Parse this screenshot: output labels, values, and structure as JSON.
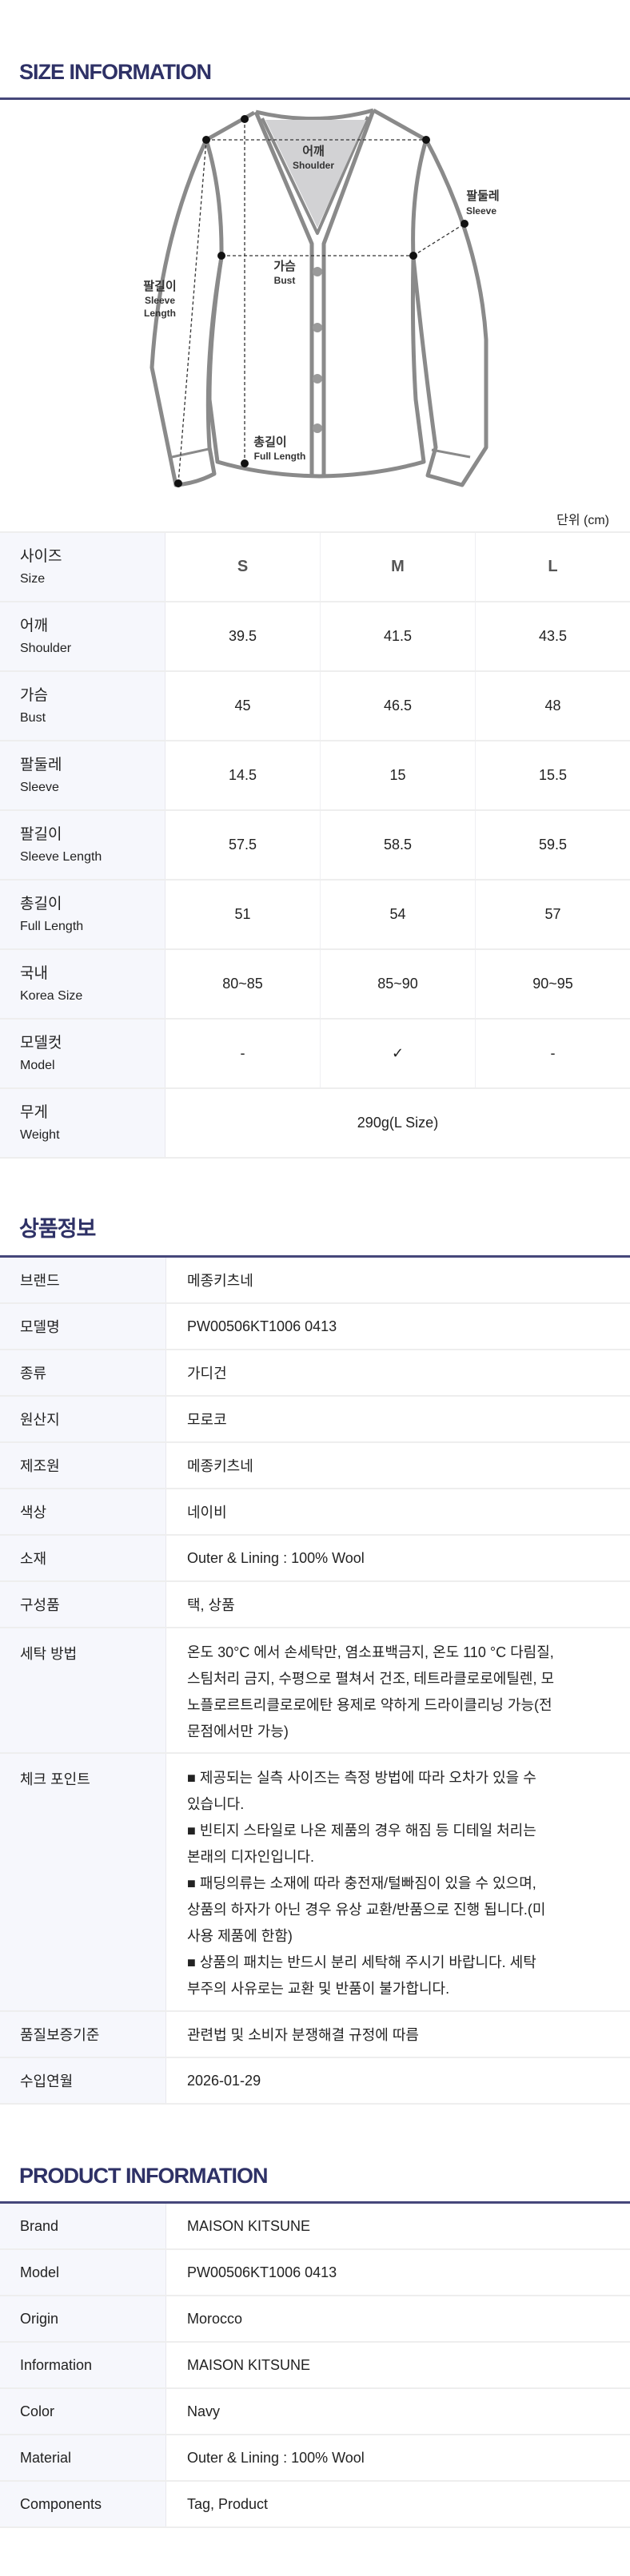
{
  "size_section": {
    "title": "SIZE INFORMATION",
    "unit": "단위 (cm)",
    "diagram_labels": {
      "shoulder_ko": "어깨",
      "shoulder_en": "Shoulder",
      "sleeve_ko": "팔둘레",
      "sleeve_en": "Sleeve",
      "bust_ko": "가슴",
      "bust_en": "Bust",
      "sleeve_length_ko": "팔길이",
      "sleeve_length_en1": "Sleeve",
      "sleeve_length_en2": "Length",
      "full_length_ko": "총길이",
      "full_length_en": "Full Length"
    },
    "rows": [
      {
        "ko": "사이즈",
        "en": "Size",
        "values": [
          "S",
          "M",
          "L"
        ]
      },
      {
        "ko": "어깨",
        "en": "Shoulder",
        "values": [
          "39.5",
          "41.5",
          "43.5"
        ]
      },
      {
        "ko": "가슴",
        "en": "Bust",
        "values": [
          "45",
          "46.5",
          "48"
        ]
      },
      {
        "ko": "팔둘레",
        "en": "Sleeve",
        "values": [
          "14.5",
          "15",
          "15.5"
        ]
      },
      {
        "ko": "팔길이",
        "en": "Sleeve Length",
        "values": [
          "57.5",
          "58.5",
          "59.5"
        ]
      },
      {
        "ko": "총길이",
        "en": "Full Length",
        "values": [
          "51",
          "54",
          "57"
        ]
      },
      {
        "ko": "국내",
        "en": "Korea Size",
        "values": [
          "80~85",
          "85~90",
          "90~95"
        ]
      },
      {
        "ko": "모델컷",
        "en": "Model",
        "values": [
          "-",
          "✓",
          "-"
        ]
      },
      {
        "ko": "무게",
        "en": "Weight",
        "value": "290g(L Size)"
      }
    ]
  },
  "ko_info": {
    "title": "상품정보",
    "rows": [
      {
        "label": "브랜드",
        "value": "메종키츠네"
      },
      {
        "label": "모델명",
        "value": "PW00506KT1006 0413"
      },
      {
        "label": "종류",
        "value": "가디건"
      },
      {
        "label": "원산지",
        "value": "모로코"
      },
      {
        "label": "제조원",
        "value": "메종키츠네"
      },
      {
        "label": "색상",
        "value": "네이비"
      },
      {
        "label": "소재",
        "value": "Outer & Lining : 100% Wool"
      },
      {
        "label": "구성품",
        "value": "택, 상품"
      }
    ],
    "wash": {
      "label": "세탁 방법",
      "lines": [
        "온도 30°C 에서 손세탁만, 염소표백금지, 온도 110 °C 다림질,",
        "스팀처리 금지, 수평으로 펼쳐서 건조, 테트라클로로에틸렌, 모",
        "노플로르트리클로로에탄 용제로 약하게 드라이클리닝 가능(전",
        "문점에서만 가능)"
      ]
    },
    "check": {
      "label": "체크 포인트",
      "lines": [
        " ■ 제공되는 실측 사이즈는 측정 방법에 따라 오차가 있을 수",
        "있습니다.",
        " ■ 빈티지 스타일로 나온 제품의 경우 해짐 등 디테일 처리는",
        "본래의 디자인입니다.",
        " ■ 패딩의류는 소재에 따라 충전재/털빠짐이 있을 수 있으며,",
        "상품의 하자가 아닌 경우 유상 교환/반품으로 진행 됩니다.(미",
        "사용 제품에 한함)",
        " ■ 상품의 패치는 반드시 분리 세탁해 주시기 바랍니다. 세탁",
        "부주의 사유로는 교환 및 반품이 불가합니다."
      ]
    },
    "tail_rows": [
      {
        "label": "품질보증기준",
        "value": "관련법 및 소비자 분쟁해결 규정에 따름"
      },
      {
        "label": "수입연월",
        "value": "2026-01-29"
      }
    ]
  },
  "en_info": {
    "title": "PRODUCT INFORMATION",
    "rows": [
      {
        "label": "Brand",
        "value": "MAISON KITSUNE"
      },
      {
        "label": "Model",
        "value": "PW00506KT1006 0413"
      },
      {
        "label": "Origin",
        "value": "Morocco"
      },
      {
        "label": "Information",
        "value": "MAISON KITSUNE"
      },
      {
        "label": "Color",
        "value": "Navy"
      },
      {
        "label": "Material",
        "value": "Outer & Lining : 100% Wool"
      },
      {
        "label": "Components",
        "value": "Tag, Product"
      }
    ]
  },
  "colors": {
    "accent": "#2e3166",
    "label_bg": "#f6f7fc",
    "outline": "#8a8a8a"
  }
}
